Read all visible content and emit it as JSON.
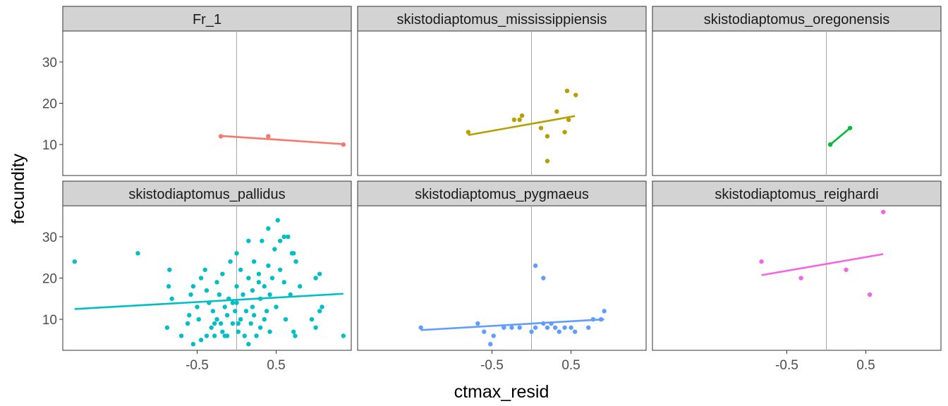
{
  "chart_data": {
    "type": "scatter",
    "xlabel": "ctmax_resid",
    "ylabel": "fecundity",
    "xlim": [
      -2.2,
      1.45
    ],
    "ylim": [
      2.5,
      37.5
    ],
    "x_ticks": [
      -0.5,
      0.5
    ],
    "x_tick_labels": [
      "-0.5",
      "0.5"
    ],
    "y_ticks": [
      10,
      20,
      30
    ],
    "y_tick_labels": [
      "10",
      "20",
      "30"
    ],
    "reference_vline_x": 0,
    "grid": false,
    "legend": "none",
    "panels": [
      {
        "name": "Fr_1",
        "color": "#F8766D",
        "points": [
          [
            -0.2,
            12
          ],
          [
            0.4,
            12
          ],
          [
            1.35,
            10
          ]
        ],
        "fit": [
          [
            -0.2,
            12.1
          ],
          [
            1.35,
            10.1
          ]
        ]
      },
      {
        "name": "skistodiaptomus_mississippiensis",
        "color": "#B79F00",
        "points": [
          [
            -0.8,
            13
          ],
          [
            -0.22,
            16
          ],
          [
            -0.15,
            16
          ],
          [
            -0.12,
            17
          ],
          [
            0.12,
            14
          ],
          [
            0.2,
            12
          ],
          [
            0.2,
            6
          ],
          [
            0.32,
            18
          ],
          [
            0.42,
            13
          ],
          [
            0.45,
            23
          ],
          [
            0.47,
            16
          ],
          [
            0.56,
            22
          ]
        ],
        "fit": [
          [
            -0.8,
            12.3
          ],
          [
            0.55,
            16.9
          ]
        ]
      },
      {
        "name": "skistodiaptomus_oregonensis",
        "color": "#00BA38",
        "points": [
          [
            0.05,
            10
          ],
          [
            0.3,
            14
          ]
        ],
        "fit": [
          [
            0.05,
            10
          ],
          [
            0.3,
            14
          ]
        ]
      },
      {
        "name": "skistodiaptomus_pallidus",
        "color": "#00BFC4",
        "points": [
          [
            -2.05,
            24
          ],
          [
            -1.25,
            26
          ],
          [
            -0.88,
            8
          ],
          [
            -0.86,
            18
          ],
          [
            -0.82,
            15
          ],
          [
            -0.85,
            22
          ],
          [
            -0.7,
            6
          ],
          [
            -0.62,
            9
          ],
          [
            -0.6,
            11
          ],
          [
            -0.58,
            16
          ],
          [
            -0.55,
            4
          ],
          [
            -0.55,
            18
          ],
          [
            -0.5,
            13
          ],
          [
            -0.48,
            10
          ],
          [
            -0.45,
            20
          ],
          [
            -0.45,
            5
          ],
          [
            -0.4,
            22
          ],
          [
            -0.38,
            17
          ],
          [
            -0.35,
            14
          ],
          [
            -0.32,
            8
          ],
          [
            -0.3,
            12
          ],
          [
            -0.28,
            6
          ],
          [
            -0.25,
            19
          ],
          [
            -0.25,
            10
          ],
          [
            -0.22,
            16
          ],
          [
            -0.2,
            9
          ],
          [
            -0.18,
            21
          ],
          [
            -0.18,
            7
          ],
          [
            -0.15,
            13
          ],
          [
            -0.12,
            11
          ],
          [
            -0.12,
            6
          ],
          [
            -0.1,
            15
          ],
          [
            -0.08,
            24
          ],
          [
            -0.05,
            14
          ],
          [
            -0.05,
            9
          ],
          [
            -0.02,
            12
          ],
          [
            0,
            26
          ],
          [
            0,
            18
          ],
          [
            0,
            14
          ],
          [
            0.02,
            7
          ],
          [
            0.05,
            10
          ],
          [
            0.05,
            22
          ],
          [
            0.08,
            16
          ],
          [
            0.1,
            6
          ],
          [
            0.12,
            12
          ],
          [
            0.15,
            29
          ],
          [
            0.15,
            20
          ],
          [
            0.15,
            4
          ],
          [
            0.18,
            9
          ],
          [
            0.2,
            17
          ],
          [
            0.2,
            13
          ],
          [
            0.22,
            24
          ],
          [
            0.22,
            11
          ],
          [
            0.25,
            6
          ],
          [
            0.28,
            19
          ],
          [
            0.28,
            21
          ],
          [
            0.3,
            15
          ],
          [
            0.3,
            8
          ],
          [
            0.32,
            29
          ],
          [
            0.35,
            18
          ],
          [
            0.35,
            10
          ],
          [
            0.38,
            12
          ],
          [
            0.4,
            32
          ],
          [
            0.4,
            23
          ],
          [
            0.42,
            16
          ],
          [
            0.42,
            7
          ],
          [
            0.45,
            20
          ],
          [
            0.48,
            27
          ],
          [
            0.5,
            13
          ],
          [
            0.52,
            34
          ],
          [
            0.55,
            22
          ],
          [
            0.55,
            29
          ],
          [
            0.6,
            30
          ],
          [
            0.6,
            19
          ],
          [
            0.62,
            10
          ],
          [
            0.65,
            30
          ],
          [
            0.68,
            16
          ],
          [
            0.7,
            26
          ],
          [
            0.72,
            26
          ],
          [
            0.72,
            7
          ],
          [
            0.75,
            24
          ],
          [
            0.8,
            18
          ],
          [
            0.95,
            10
          ],
          [
            1,
            8
          ],
          [
            1,
            20
          ],
          [
            1.05,
            21
          ],
          [
            1.05,
            12
          ],
          [
            1.08,
            13
          ],
          [
            1.35,
            6
          ],
          [
            0.02,
            9
          ],
          [
            -0.28,
            9
          ],
          [
            -0.38,
            6
          ],
          [
            0.74,
            6
          ],
          [
            -0.15,
            6
          ]
        ],
        "fit": [
          [
            -2.05,
            12.5
          ],
          [
            1.35,
            16.2
          ]
        ]
      },
      {
        "name": "skistodiaptomus_pygmaeus",
        "color": "#619CFF",
        "points": [
          [
            -1.4,
            8
          ],
          [
            -0.68,
            9
          ],
          [
            -0.6,
            7
          ],
          [
            -0.52,
            4
          ],
          [
            -0.48,
            6
          ],
          [
            -0.35,
            8
          ],
          [
            -0.25,
            8
          ],
          [
            -0.15,
            8
          ],
          [
            0,
            7
          ],
          [
            0.05,
            23
          ],
          [
            0.05,
            8
          ],
          [
            0.15,
            9
          ],
          [
            0.15,
            20
          ],
          [
            0.2,
            8
          ],
          [
            0.25,
            9
          ],
          [
            0.3,
            8
          ],
          [
            0.35,
            7
          ],
          [
            0.42,
            8
          ],
          [
            0.5,
            8
          ],
          [
            0.55,
            7
          ],
          [
            0.72,
            8
          ],
          [
            0.78,
            10
          ],
          [
            0.88,
            10
          ],
          [
            0.92,
            12
          ]
        ],
        "fit": [
          [
            -1.4,
            7.4
          ],
          [
            0.92,
            10
          ]
        ]
      },
      {
        "name": "skistodiaptomus_reighardi",
        "color": "#F564E3",
        "points": [
          [
            -0.82,
            24
          ],
          [
            -0.32,
            20
          ],
          [
            0.25,
            22
          ],
          [
            0.55,
            16
          ],
          [
            0.72,
            36
          ]
        ],
        "fit": [
          [
            -0.82,
            20.7
          ],
          [
            0.72,
            25.8
          ]
        ]
      }
    ]
  }
}
